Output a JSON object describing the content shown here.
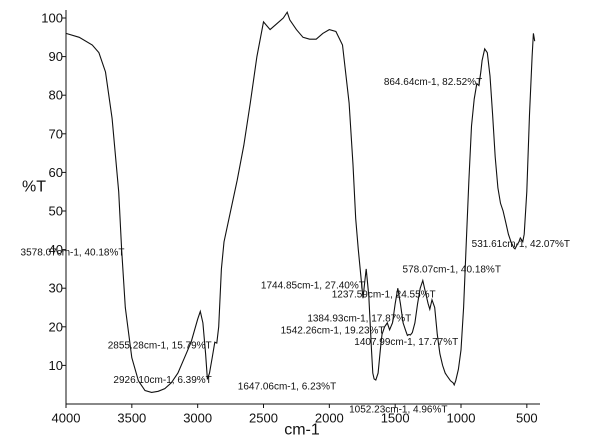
{
  "chart_data": {
    "type": "line",
    "title": "",
    "xlabel": "cm-1",
    "ylabel": "%T",
    "xlim": [
      4000,
      400
    ],
    "ylim": [
      0,
      100
    ],
    "x_ticks": [
      4000,
      3500,
      3000,
      2500,
      2000,
      1500,
      1000,
      500
    ],
    "x_tick_labels": [
      "4000",
      "3500",
      "3000",
      "2500",
      "2000",
      "1500",
      "1000",
      "500"
    ],
    "y_ticks": [
      10,
      20,
      30,
      40,
      50,
      60,
      70,
      80,
      90,
      100
    ],
    "y_tick_labels": [
      "10",
      "20",
      "30",
      "40",
      "50",
      "60",
      "70",
      "80",
      "90",
      "100"
    ],
    "grid": false,
    "series": [
      {
        "x": [
          4000,
          3900,
          3800,
          3750,
          3700,
          3650,
          3600,
          3578,
          3550,
          3500,
          3450,
          3400,
          3350,
          3300,
          3250,
          3200,
          3150,
          3100,
          3050,
          3000,
          2980,
          2960,
          2940,
          2926,
          2910,
          2890,
          2870,
          2855,
          2840,
          2820,
          2800,
          2750,
          2700,
          2650,
          2600,
          2550,
          2500,
          2450,
          2400,
          2350,
          2320,
          2300,
          2250,
          2200,
          2150,
          2100,
          2050,
          2000,
          1950,
          1900,
          1850,
          1820,
          1800,
          1780,
          1760,
          1744,
          1730,
          1720,
          1700,
          1680,
          1670,
          1660,
          1647,
          1630,
          1610,
          1600,
          1580,
          1560,
          1542,
          1520,
          1500,
          1480,
          1460,
          1440,
          1420,
          1407,
          1395,
          1384,
          1370,
          1350,
          1330,
          1310,
          1290,
          1270,
          1250,
          1237,
          1220,
          1200,
          1180,
          1160,
          1140,
          1120,
          1100,
          1080,
          1060,
          1052,
          1040,
          1020,
          1000,
          980,
          960,
          940,
          920,
          900,
          880,
          864,
          850,
          840,
          820,
          800,
          780,
          760,
          740,
          720,
          700,
          680,
          660,
          640,
          620,
          600,
          590,
          578,
          560,
          550,
          531,
          520,
          500,
          480,
          460,
          450,
          440
        ],
        "y": [
          96,
          95,
          93,
          91,
          86,
          74,
          55,
          40.18,
          25,
          12,
          6,
          3.5,
          3,
          3.3,
          4,
          5.5,
          8,
          12,
          16,
          22,
          24,
          21,
          13,
          6.39,
          8,
          12,
          16,
          15.79,
          20,
          35,
          42,
          50,
          58,
          67,
          78,
          90,
          99,
          97,
          98.5,
          100,
          101.5,
          99.5,
          97,
          95,
          94.5,
          94.5,
          96,
          97,
          96.5,
          93,
          78,
          62,
          48,
          40,
          33,
          27.4,
          32,
          35,
          28,
          14,
          8,
          6.5,
          6.23,
          8,
          15,
          18,
          20,
          21,
          19.23,
          21,
          26,
          30,
          26,
          21,
          19,
          17.77,
          18,
          17.87,
          18.5,
          21,
          26,
          30,
          32,
          29,
          26,
          24.55,
          27,
          25,
          18,
          13,
          10,
          8,
          7,
          6,
          5.5,
          4.96,
          6,
          9,
          14,
          25,
          42,
          58,
          72,
          79,
          83,
          82.52,
          86,
          89,
          92,
          91,
          85,
          75,
          64,
          56,
          52,
          50,
          47,
          44,
          42,
          40.5,
          40.18,
          41,
          42,
          43,
          42.07,
          44,
          55,
          75,
          90,
          96,
          94
        ]
      }
    ],
    "annotations": [
      {
        "x": 3578.07,
        "y": 40.18,
        "text": "3578.07cm-1, 40.18%T"
      },
      {
        "x": 2926.1,
        "y": 6.39,
        "text": "2926.10cm-1, 6.39%T"
      },
      {
        "x": 2855.28,
        "y": 15.79,
        "text": "2855.28cm-1, 15.79%T"
      },
      {
        "x": 1744.85,
        "y": 27.4,
        "text": "1744.85cm-1, 27.40%T"
      },
      {
        "x": 1647.06,
        "y": 6.23,
        "text": "1647.06cm-1, 6.23%T"
      },
      {
        "x": 1542.26,
        "y": 19.23,
        "text": "1542.26cm-1, 19.23%T"
      },
      {
        "x": 1407.99,
        "y": 17.77,
        "text": "1407.99cm-1, 17.77%T"
      },
      {
        "x": 1384.93,
        "y": 17.87,
        "text": "1384.93cm-1, 17.87%T"
      },
      {
        "x": 1237.59,
        "y": 24.55,
        "text": "1237.59cm-1, 24.55%T"
      },
      {
        "x": 1052.23,
        "y": 4.96,
        "text": "1052.23cm-1, 4.96%T"
      },
      {
        "x": 864.64,
        "y": 82.52,
        "text": "864.64cm-1, 82.52%T"
      },
      {
        "x": 578.07,
        "y": 40.18,
        "text": "578.07cm-1, 40.18%T"
      },
      {
        "x": 531.61,
        "y": 42.07,
        "text": "531.61cm-1, 42.07%T"
      }
    ],
    "colors": {
      "line": "#111111",
      "axis": "#111111",
      "text": "#111111",
      "background": "#ffffff"
    }
  }
}
